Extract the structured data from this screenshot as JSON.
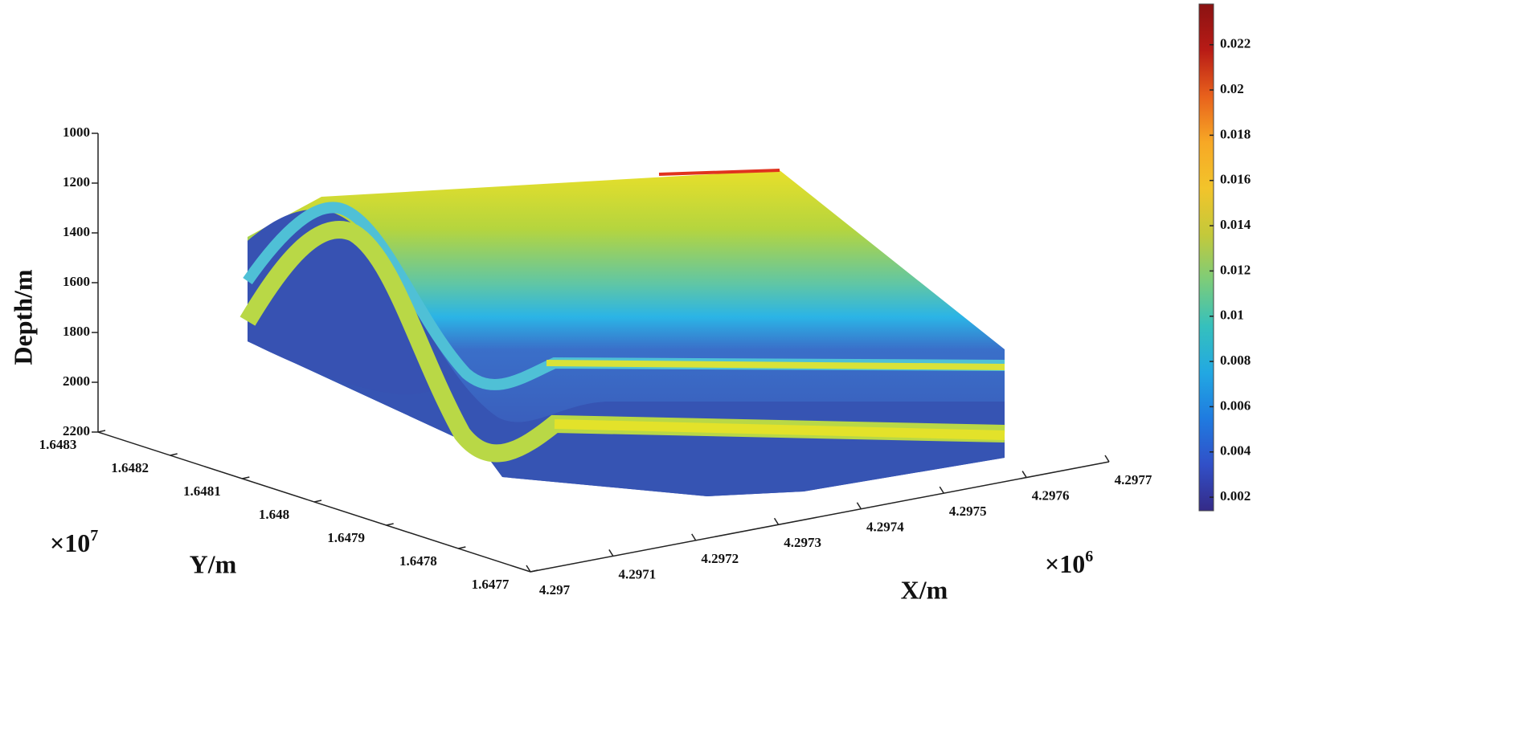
{
  "chart_data": {
    "type": "surface3d",
    "xlabel": "X/m",
    "ylabel": "Y/m",
    "zlabel": "Depth/m",
    "x_scale": {
      "base": "×10",
      "exponent": "6"
    },
    "y_scale": {
      "base": "×10",
      "exponent": "7"
    },
    "xlim": [
      4.297,
      4.2977
    ],
    "xticks": [
      4.297,
      4.2971,
      4.2972,
      4.2973,
      4.2974,
      4.2975,
      4.2976,
      4.2977
    ],
    "ylim": [
      1.6477,
      1.6483
    ],
    "yticks": [
      1.6477,
      1.6478,
      1.6479,
      1.648,
      1.6481,
      1.6482,
      1.6483
    ],
    "zlim": [
      2200,
      1000
    ],
    "zticks": [
      1000,
      1200,
      1400,
      1600,
      1800,
      2000,
      2200
    ],
    "colorbar": {
      "colormap": "jet",
      "clim": [
        0.0014,
        0.0238
      ],
      "ticks": [
        0.002,
        0.004,
        0.006,
        0.008,
        0.01,
        0.012,
        0.014,
        0.016,
        0.018,
        0.02,
        0.022
      ]
    }
  }
}
